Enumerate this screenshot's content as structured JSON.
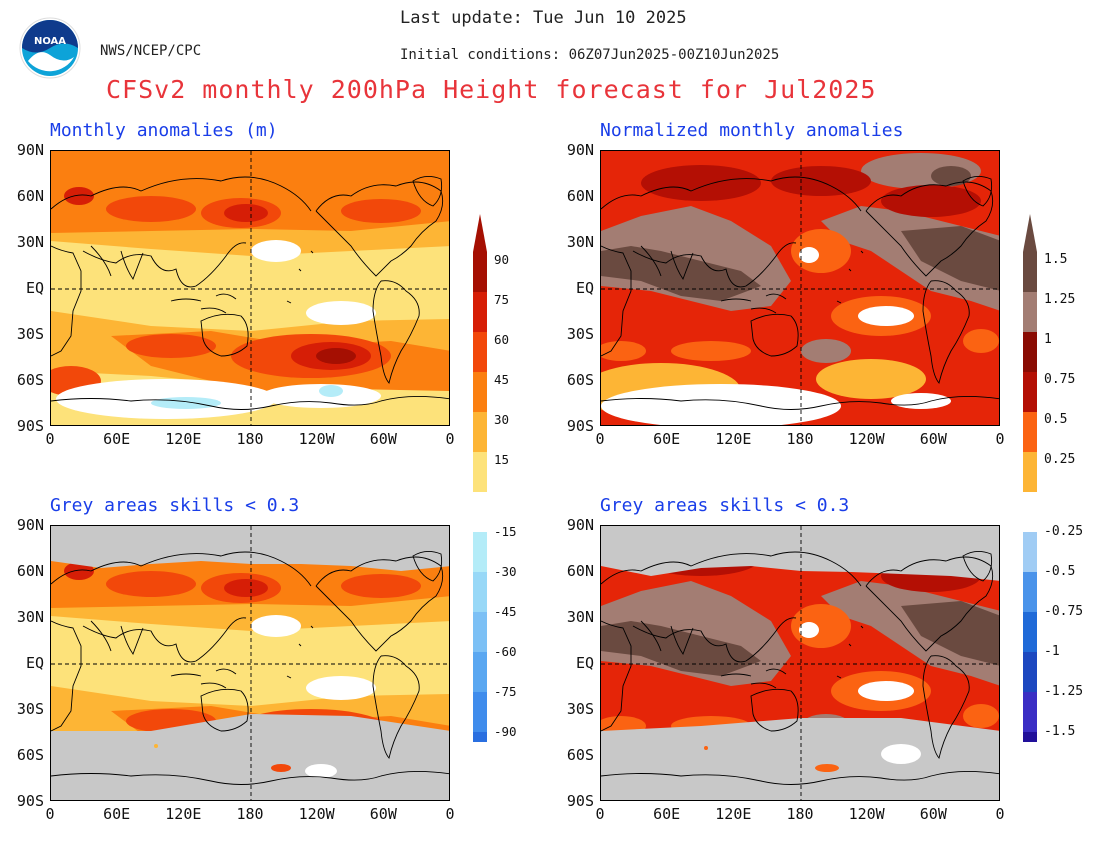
{
  "header": {
    "last_update": "Last update: Tue Jun 10 2025",
    "initial_conditions": "Initial conditions: 06Z07Jun2025-00Z10Jun2025",
    "agency": "NWS/NCEP/CPC",
    "logo_text": "NOAA",
    "main_title": "CFSv2 monthly 200hPa Height forecast for Jul2025"
  },
  "panels": [
    {
      "title": "Monthly anomalies (m)",
      "style": "abs",
      "masked": false
    },
    {
      "title": "Normalized monthly anomalies",
      "style": "norm",
      "masked": false
    },
    {
      "title": "Grey areas skills < 0.3",
      "style": "abs",
      "masked": true
    },
    {
      "title": "Grey areas skills < 0.3",
      "style": "norm",
      "masked": true
    }
  ],
  "lat_labels": [
    "90N",
    "60N",
    "30N",
    "EQ",
    "30S",
    "60S",
    "90S"
  ],
  "lon_labels": [
    "0",
    "60E",
    "120E",
    "180",
    "120W",
    "60W",
    "0"
  ],
  "colorbar_abs": {
    "positive": [
      "90",
      "75",
      "60",
      "45",
      "30",
      "15"
    ],
    "negative": [
      "-15",
      "-30",
      "-45",
      "-60",
      "-75",
      "-90"
    ]
  },
  "colorbar_norm": {
    "positive": [
      "1.5",
      "1.25",
      "1",
      "0.75",
      "0.5",
      "0.25"
    ],
    "negative": [
      "-0.25",
      "-0.5",
      "-0.75",
      "-1",
      "-1.25",
      "-1.5"
    ]
  },
  "colors": {
    "title_red": "#e8343a",
    "panel_blue": "#1a3ee8",
    "skill_mask_grey": "#c8c8c8",
    "abs_scale": [
      "#fde27a",
      "#fdb535",
      "#fb7f10",
      "#f2480a",
      "#d61e06",
      "#a50f02"
    ],
    "abs_neg_scale": [
      "#b4ecf8",
      "#98d8f7",
      "#7cc0f5",
      "#5aa7f1",
      "#3f8cec",
      "#2a6fe0"
    ],
    "norm_scale": [
      "#fdb535",
      "#fb6312",
      "#e52508",
      "#b40f04",
      "#8a0b03",
      "#a37d73",
      "#6a4a40"
    ],
    "norm_neg_scale": [
      "#a0ccf4",
      "#4a93ea",
      "#1f6ad8",
      "#1c48c0",
      "#3a2ec4",
      "#21109a"
    ]
  }
}
